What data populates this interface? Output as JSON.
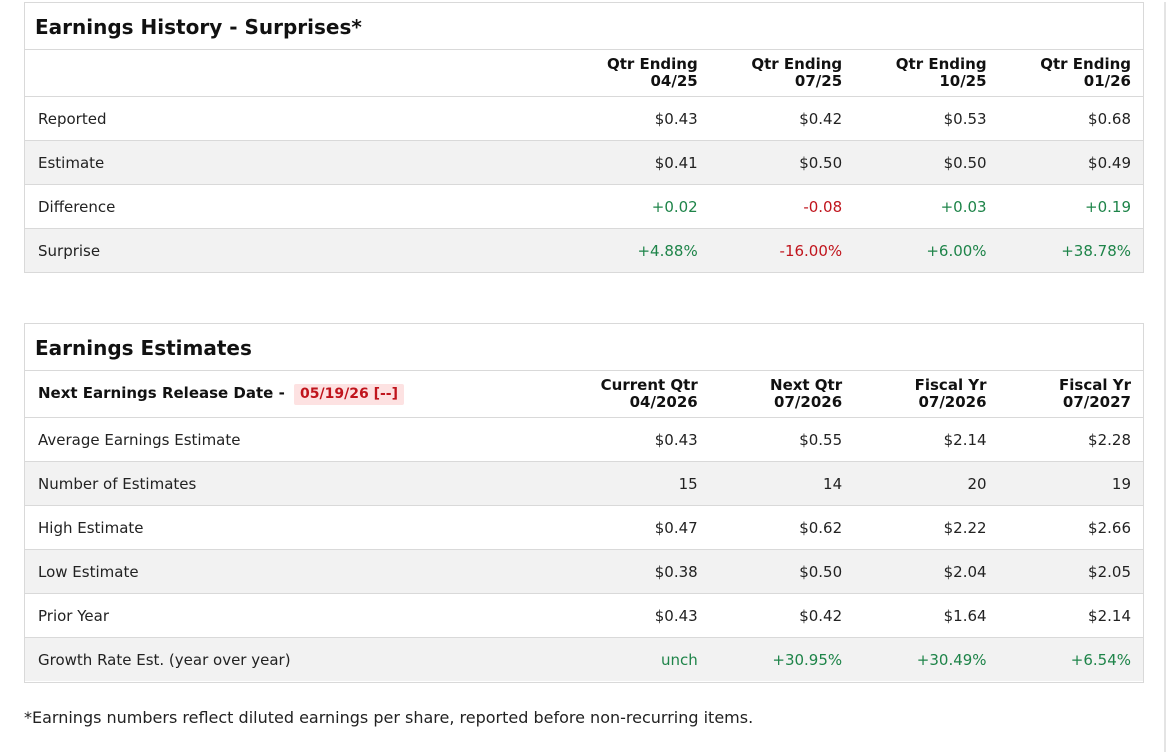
{
  "history": {
    "title": "Earnings History - Surprises*",
    "columns": [
      {
        "line1": "Qtr Ending",
        "line2": "04/25"
      },
      {
        "line1": "Qtr Ending",
        "line2": "07/25"
      },
      {
        "line1": "Qtr Ending",
        "line2": "10/25"
      },
      {
        "line1": "Qtr Ending",
        "line2": "01/26"
      }
    ],
    "rows": [
      {
        "label": "Reported",
        "values": [
          "$0.43",
          "$0.42",
          "$0.53",
          "$0.68"
        ],
        "tones": [
          "",
          "",
          "",
          ""
        ]
      },
      {
        "label": "Estimate",
        "values": [
          "$0.41",
          "$0.50",
          "$0.50",
          "$0.49"
        ],
        "tones": [
          "",
          "",
          "",
          ""
        ]
      },
      {
        "label": "Difference",
        "values": [
          "+0.02",
          "-0.08",
          "+0.03",
          "+0.19"
        ],
        "tones": [
          "pos",
          "neg",
          "pos",
          "pos"
        ]
      },
      {
        "label": "Surprise",
        "values": [
          "+4.88%",
          "-16.00%",
          "+6.00%",
          "+38.78%"
        ],
        "tones": [
          "pos",
          "neg",
          "pos",
          "pos"
        ]
      }
    ]
  },
  "estimates": {
    "title": "Earnings Estimates",
    "release_label": "Next Earnings Release Date -",
    "release_date": "05/19/26 [--]",
    "columns": [
      {
        "line1": "Current Qtr",
        "line2": "04/2026"
      },
      {
        "line1": "Next Qtr",
        "line2": "07/2026"
      },
      {
        "line1": "Fiscal Yr",
        "line2": "07/2026"
      },
      {
        "line1": "Fiscal Yr",
        "line2": "07/2027"
      }
    ],
    "rows": [
      {
        "label": "Average Earnings Estimate",
        "values": [
          "$0.43",
          "$0.55",
          "$2.14",
          "$2.28"
        ],
        "tones": [
          "",
          "",
          "",
          ""
        ]
      },
      {
        "label": "Number of Estimates",
        "values": [
          "15",
          "14",
          "20",
          "19"
        ],
        "tones": [
          "",
          "",
          "",
          ""
        ]
      },
      {
        "label": "High Estimate",
        "values": [
          "$0.47",
          "$0.62",
          "$2.22",
          "$2.66"
        ],
        "tones": [
          "",
          "",
          "",
          ""
        ]
      },
      {
        "label": "Low Estimate",
        "values": [
          "$0.38",
          "$0.50",
          "$2.04",
          "$2.05"
        ],
        "tones": [
          "",
          "",
          "",
          ""
        ]
      },
      {
        "label": "Prior Year",
        "values": [
          "$0.43",
          "$0.42",
          "$1.64",
          "$2.14"
        ],
        "tones": [
          "",
          "",
          "",
          ""
        ]
      },
      {
        "label": "Growth Rate Est. (year over year)",
        "values": [
          "unch",
          "+30.95%",
          "+30.49%",
          "+6.54%"
        ],
        "tones": [
          "pos",
          "pos",
          "pos",
          "pos"
        ]
      }
    ]
  },
  "footnote": "*Earnings numbers reflect diluted earnings per share, reported before non-recurring items.",
  "colors": {
    "positive": "#1e8449",
    "negative": "#c0141c",
    "row_alt": "#f2f2f2",
    "border": "#d9d9d9"
  }
}
